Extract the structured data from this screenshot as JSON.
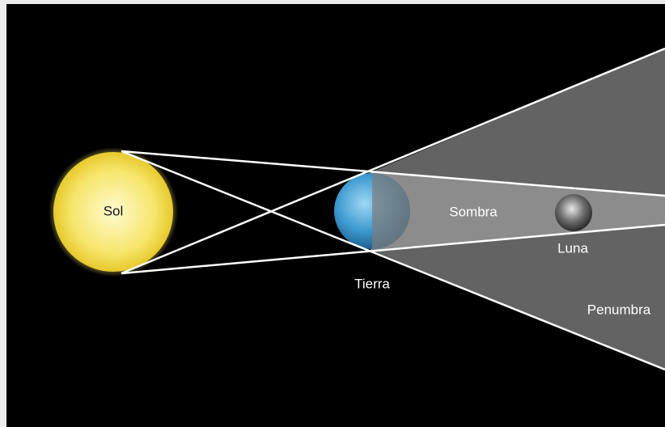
{
  "labels": {
    "sun": "Sol",
    "earth": "Tierra",
    "umbra": "Sombra",
    "moon": "Luna",
    "penumbra": "Penumbra"
  }
}
